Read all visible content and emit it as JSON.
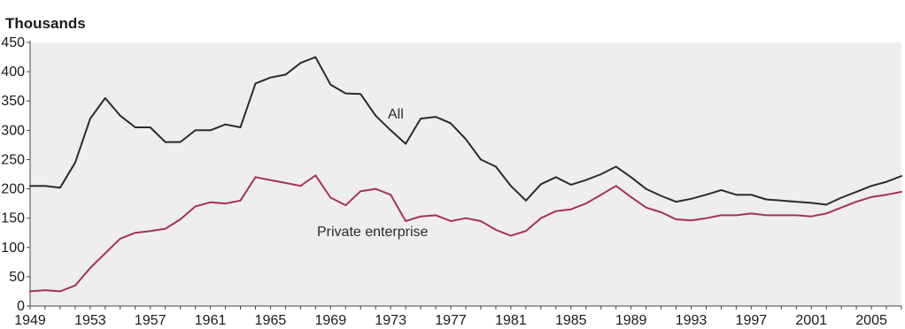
{
  "chart_data": {
    "type": "line",
    "title": "",
    "ylabel": "Thousands",
    "xlabel": "",
    "ylim": [
      0,
      450
    ],
    "xlim": [
      1949,
      2007
    ],
    "y_ticks": [
      0,
      50,
      100,
      150,
      200,
      250,
      300,
      350,
      400,
      450
    ],
    "x_ticks": [
      "1949",
      "1953",
      "1957",
      "1961",
      "1965",
      "1969",
      "1973",
      "1977",
      "1981",
      "1985",
      "1989",
      "1993",
      "1997",
      "2001",
      "2005"
    ],
    "grid": false,
    "background": "#eeeef0",
    "series": [
      {
        "name": "All",
        "color": "#2b2b2b",
        "x": [
          1949,
          1950,
          1951,
          1952,
          1953,
          1954,
          1955,
          1956,
          1957,
          1958,
          1959,
          1960,
          1961,
          1962,
          1963,
          1964,
          1965,
          1966,
          1967,
          1968,
          1969,
          1970,
          1971,
          1972,
          1973,
          1974,
          1975,
          1976,
          1977,
          1978,
          1979,
          1980,
          1981,
          1982,
          1983,
          1984,
          1985,
          1986,
          1987,
          1988,
          1989,
          1990,
          1991,
          1992,
          1993,
          1994,
          1995,
          1996,
          1997,
          1998,
          1999,
          2000,
          2001,
          2002,
          2003,
          2004,
          2005,
          2006,
          2007
        ],
        "values": [
          205,
          205,
          202,
          245,
          320,
          355,
          325,
          305,
          305,
          280,
          280,
          300,
          300,
          310,
          305,
          380,
          390,
          395,
          415,
          425,
          378,
          363,
          362,
          325,
          300,
          277,
          320,
          323,
          312,
          285,
          250,
          238,
          205,
          180,
          208,
          220,
          207,
          215,
          225,
          238,
          220,
          200,
          188,
          178,
          183,
          190,
          198,
          190,
          190,
          182,
          180,
          178,
          176,
          173,
          185,
          195,
          205,
          212,
          222
        ]
      },
      {
        "name": "Private enterprise",
        "color": "#a8305a",
        "x": [
          1949,
          1950,
          1951,
          1952,
          1953,
          1954,
          1955,
          1956,
          1957,
          1958,
          1959,
          1960,
          1961,
          1962,
          1963,
          1964,
          1965,
          1966,
          1967,
          1968,
          1969,
          1970,
          1971,
          1972,
          1973,
          1974,
          1975,
          1976,
          1977,
          1978,
          1979,
          1980,
          1981,
          1982,
          1983,
          1984,
          1985,
          1986,
          1987,
          1988,
          1989,
          1990,
          1991,
          1992,
          1993,
          1994,
          1995,
          1996,
          1997,
          1998,
          1999,
          2000,
          2001,
          2002,
          2003,
          2004,
          2005,
          2006,
          2007
        ],
        "values": [
          25,
          27,
          25,
          35,
          65,
          90,
          115,
          125,
          128,
          132,
          148,
          170,
          177,
          175,
          180,
          220,
          215,
          210,
          205,
          223,
          185,
          172,
          196,
          200,
          190,
          145,
          153,
          155,
          145,
          150,
          145,
          130,
          120,
          128,
          150,
          162,
          165,
          175,
          190,
          205,
          186,
          168,
          160,
          148,
          146,
          150,
          155,
          155,
          158,
          155,
          155,
          155,
          153,
          158,
          168,
          178,
          186,
          190,
          195
        ]
      }
    ],
    "annotations": [
      {
        "text": "All"
      },
      {
        "text": "Private enterprise"
      }
    ]
  }
}
